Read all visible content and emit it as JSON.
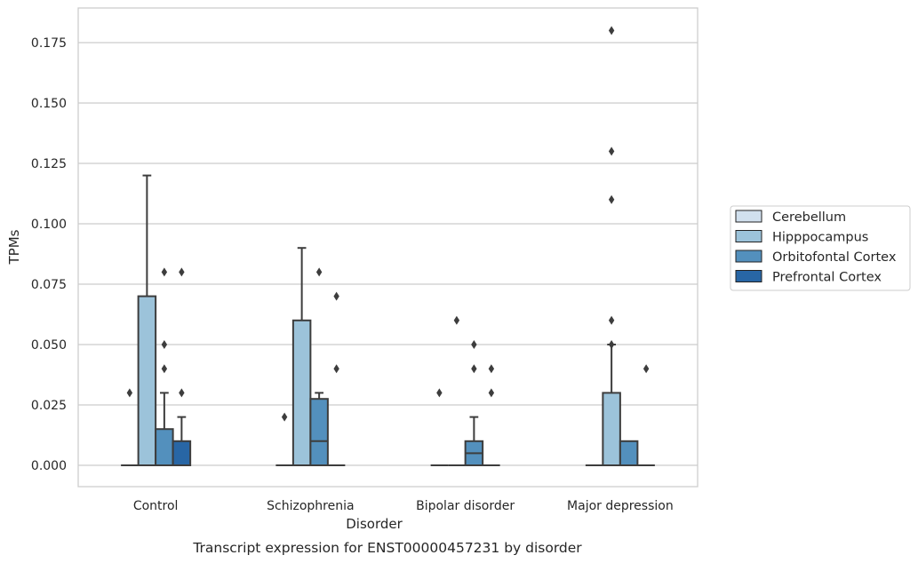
{
  "chart_data": {
    "type": "box",
    "title": "Transcript expression for ENST00000457231 by disorder",
    "xlabel": "Disorder",
    "ylabel": "TPMs",
    "ylim": [
      -0.009,
      0.189
    ],
    "yticks": [
      "0.000",
      "0.025",
      "0.050",
      "0.075",
      "0.100",
      "0.125",
      "0.150",
      "0.175"
    ],
    "ytick_values": [
      0,
      0.025,
      0.05,
      0.075,
      0.1,
      0.125,
      0.15,
      0.175
    ],
    "grid": true,
    "legend_position": "right",
    "categories": [
      "Control",
      "Schizophrenia",
      "Bipolar disorder",
      "Major depression"
    ],
    "series": [
      {
        "name": "Cerebellum",
        "color": "#d1e0ee",
        "boxes": [
          {
            "q1": 0,
            "median": 0,
            "q3": 0,
            "whislo": 0,
            "whishi": 0,
            "fliers": [
              0.03
            ]
          },
          {
            "q1": 0,
            "median": 0,
            "q3": 0,
            "whislo": 0,
            "whishi": 0,
            "fliers": [
              0.02
            ]
          },
          {
            "q1": 0,
            "median": 0,
            "q3": 0,
            "whislo": 0,
            "whishi": 0,
            "fliers": [
              0.03
            ]
          },
          {
            "q1": 0,
            "median": 0,
            "q3": 0,
            "whislo": 0,
            "whishi": 0,
            "fliers": []
          }
        ]
      },
      {
        "name": "Hipppocampus",
        "color": "#9cc3da",
        "boxes": [
          {
            "q1": 0,
            "median": 0,
            "q3": 0.07,
            "whislo": 0,
            "whishi": 0.12,
            "fliers": []
          },
          {
            "q1": 0,
            "median": 0,
            "q3": 0.06,
            "whislo": 0,
            "whishi": 0.09,
            "fliers": []
          },
          {
            "q1": 0,
            "median": 0,
            "q3": 0,
            "whislo": 0,
            "whishi": 0,
            "fliers": [
              0.06
            ]
          },
          {
            "q1": 0,
            "median": 0,
            "q3": 0.03,
            "whislo": 0,
            "whishi": 0.05,
            "fliers": [
              0.11,
              0.13,
              0.18,
              0.06,
              0.05
            ]
          }
        ]
      },
      {
        "name": "Orbitofontal Cortex",
        "color": "#5390bd",
        "boxes": [
          {
            "q1": 0,
            "median": 0,
            "q3": 0.015,
            "whislo": 0,
            "whishi": 0.03,
            "fliers": [
              0.08,
              0.05,
              0.04
            ]
          },
          {
            "q1": 0,
            "median": 0.01,
            "q3": 0.0275,
            "whislo": 0,
            "whishi": 0.03,
            "fliers": [
              0.08
            ]
          },
          {
            "q1": 0,
            "median": 0.005,
            "q3": 0.01,
            "whislo": 0,
            "whishi": 0.02,
            "fliers": [
              0.05,
              0.04
            ]
          },
          {
            "q1": 0,
            "median": 0,
            "q3": 0.01,
            "whislo": 0,
            "whishi": 0.01,
            "fliers": []
          }
        ]
      },
      {
        "name": "Prefrontal Cortex",
        "color": "#2866a5",
        "boxes": [
          {
            "q1": 0,
            "median": 0,
            "q3": 0.01,
            "whislo": 0,
            "whishi": 0.02,
            "fliers": [
              0.08,
              0.03
            ]
          },
          {
            "q1": 0,
            "median": 0,
            "q3": 0,
            "whislo": 0,
            "whishi": 0,
            "fliers": [
              0.07,
              0.04
            ]
          },
          {
            "q1": 0,
            "median": 0,
            "q3": 0,
            "whislo": 0,
            "whishi": 0,
            "fliers": [
              0.04,
              0.03
            ]
          },
          {
            "q1": 0,
            "median": 0,
            "q3": 0,
            "whislo": 0,
            "whishi": 0,
            "fliers": [
              0.04
            ]
          }
        ]
      }
    ]
  }
}
